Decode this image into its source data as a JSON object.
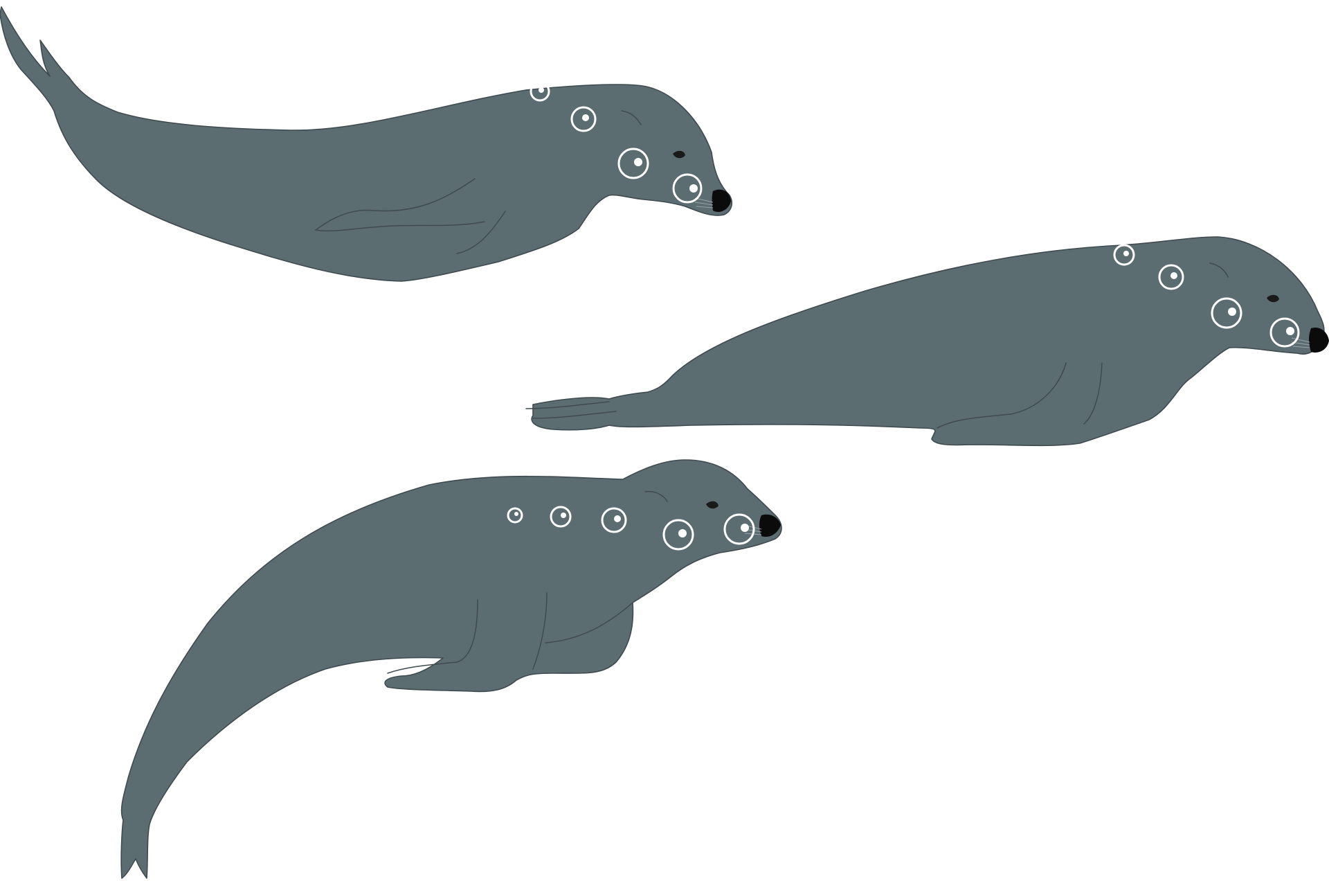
{
  "illustration": {
    "subject": "seal",
    "count": 3,
    "background_color": "#ffffff",
    "colors": {
      "body": "#5c6d72",
      "outline": "#3f4a4f",
      "nose": "#0b0b0b",
      "spots": "#ffffff"
    },
    "seals": [
      {
        "pose": "swimming-left-to-right",
        "spot_count": 4
      },
      {
        "pose": "lying-flat",
        "spot_count": 4
      },
      {
        "pose": "resting-tail-curled-down",
        "spot_count": 5
      }
    ]
  }
}
